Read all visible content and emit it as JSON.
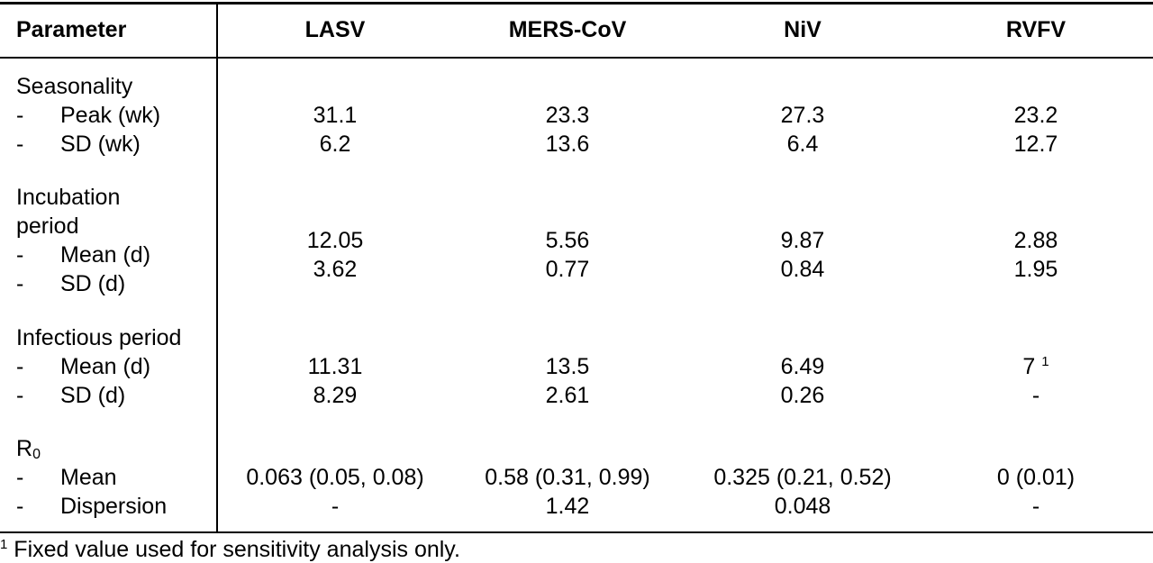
{
  "header": {
    "parameter": "Parameter",
    "cols": [
      "LASV",
      "MERS-CoV",
      "NiV",
      "RVFV"
    ]
  },
  "groups": [
    {
      "title": "Seasonality",
      "rows": [
        {
          "dash": "-",
          "label": "Peak (wk)",
          "values": [
            "31.1",
            "23.3",
            "27.3",
            "23.2"
          ]
        },
        {
          "dash": "-",
          "label": "SD (wk)",
          "values": [
            "6.2",
            "13.6",
            "6.4",
            "12.7"
          ]
        }
      ]
    },
    {
      "title_line1": "Incubation",
      "title_line2": "period",
      "rows": [
        {
          "dash": "-",
          "label": "Mean (d)",
          "values": [
            "12.05",
            "5.56",
            "9.87",
            "2.88"
          ]
        },
        {
          "dash": "-",
          "label": "SD (d)",
          "values": [
            "3.62",
            "0.77",
            "0.84",
            "1.95"
          ]
        }
      ]
    },
    {
      "title": "Infectious period",
      "rows": [
        {
          "dash": "-",
          "label": "Mean (d)",
          "values": [
            "11.31",
            "13.5",
            "6.49",
            "7"
          ],
          "rvfv_sup": "1"
        },
        {
          "dash": "-",
          "label": "SD (d)",
          "values": [
            "8.29",
            "2.61",
            "0.26",
            "-"
          ]
        }
      ]
    },
    {
      "title_main": "R",
      "title_sub": "0",
      "rows": [
        {
          "dash": "-",
          "label": "Mean",
          "values": [
            "0.063 (0.05, 0.08)",
            "0.58 (0.31, 0.99)",
            "0.325 (0.21, 0.52)",
            "0 (0.01)"
          ]
        },
        {
          "dash": "-",
          "label": "Dispersion",
          "values": [
            "-",
            "1.42",
            "0.048",
            "-"
          ]
        }
      ]
    }
  ],
  "footnote": {
    "mark": "1",
    "text": "Fixed value used for sensitivity analysis only."
  }
}
